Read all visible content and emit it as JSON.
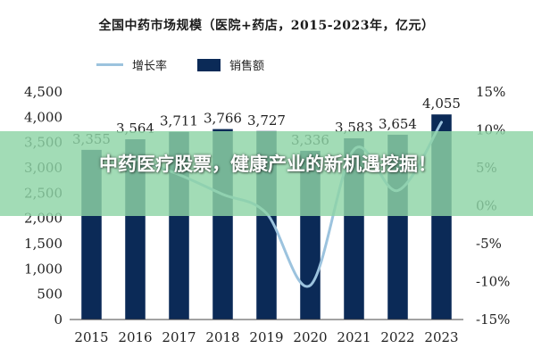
{
  "chart_data": {
    "type": "bar",
    "title": "全国中药市场规模（医院+药店，2015-2023年，亿元）",
    "categories": [
      "2015",
      "2016",
      "2017",
      "2018",
      "2019",
      "2020",
      "2021",
      "2022",
      "2023"
    ],
    "series": [
      {
        "name": "销售额",
        "type": "bar",
        "values": [
          3355,
          3564,
          3711,
          3766,
          3727,
          3336,
          3583,
          3654,
          4055
        ],
        "color": "#0b2a57"
      },
      {
        "name": "增长率",
        "type": "line",
        "axis": "right",
        "values": [
          null,
          6.2,
          4.1,
          1.5,
          -1.0,
          -10.5,
          7.4,
          2.0,
          11.0
        ],
        "color": "#9cc3de"
      }
    ],
    "data_labels": [
      "3,355",
      "3,564",
      "3,711",
      "3,766",
      "3,727",
      "3,336",
      "3,583",
      "3,654",
      "4,055"
    ],
    "ylim": [
      0,
      4500
    ],
    "y_ticks": [
      "0",
      "500",
      "1,000",
      "1,500",
      "2,000",
      "2,500",
      "3,000",
      "3,500",
      "4,000",
      "4,500"
    ],
    "y2lim": [
      -15,
      15
    ],
    "y2_ticks": [
      "-15%",
      "-10%",
      "-5%",
      "0%",
      "5%",
      "10%",
      "15%"
    ],
    "legend_position": "top-left"
  },
  "legend": {
    "rate_label": "增长率",
    "sales_label": "销售额"
  },
  "banner": {
    "text": "中药医疗股票，健康产业的新机遇挖掘！"
  }
}
